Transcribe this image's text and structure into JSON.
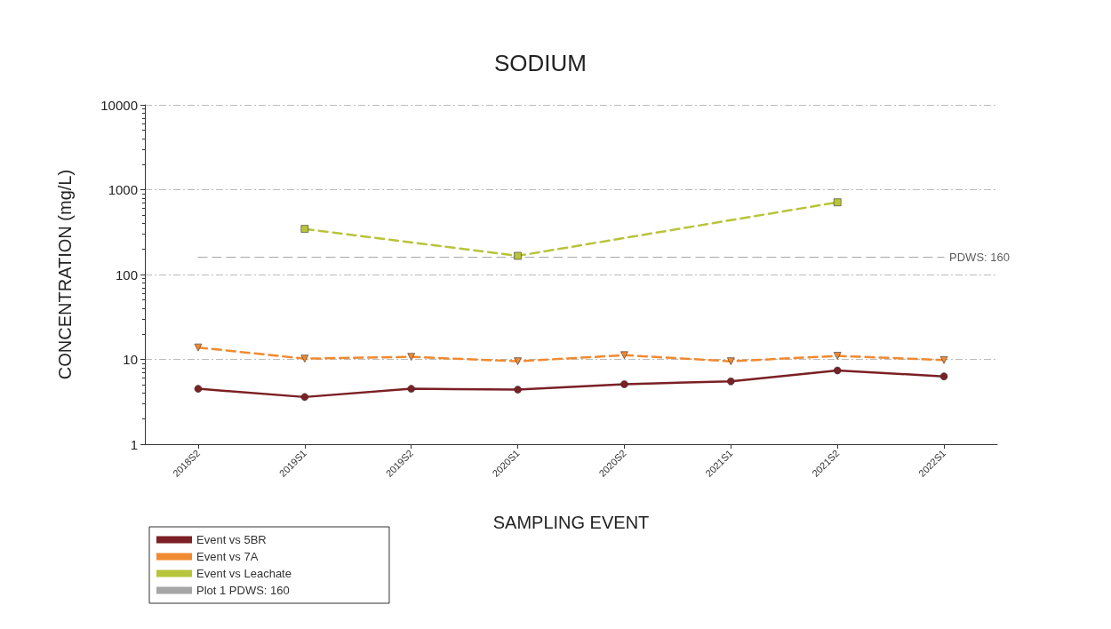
{
  "chart_data": {
    "type": "line",
    "title": "SODIUM",
    "xlabel": "SAMPLING EVENT",
    "ylabel": "CONCENTRATION (mg/L)",
    "categories": [
      "2018S2",
      "2019S1",
      "2019S2",
      "2020S1",
      "2020S2",
      "2021S1",
      "2021S2",
      "2022S1"
    ],
    "series": [
      {
        "name": "Event vs 5BR",
        "color": "#7b2025",
        "marker": "circle",
        "line_style": "solid",
        "values": [
          4.5,
          3.6,
          4.5,
          4.4,
          5.1,
          5.5,
          7.4,
          6.3
        ]
      },
      {
        "name": "Event vs 7A",
        "color": "#f08a30",
        "marker": "triangle",
        "line_style": "dashed",
        "values": [
          13.8,
          10.2,
          10.7,
          9.5,
          11.2,
          9.5,
          11,
          9.8
        ]
      },
      {
        "name": "Event vs Leachate",
        "color": "#b8c43a",
        "marker": "square",
        "line_style": "dashed",
        "values": [
          null,
          345,
          null,
          166,
          null,
          null,
          710,
          null
        ]
      },
      {
        "name": "Plot 1 PDWS: 160",
        "color": "#a6a6a6",
        "marker": "none",
        "line_style": "dashed",
        "values": [
          160,
          160,
          160,
          160,
          160,
          160,
          160,
          160
        ]
      }
    ],
    "annotations": [
      {
        "text": "PDWS: 160",
        "x": "2022S1",
        "y": 160
      }
    ],
    "log": "y",
    "ylim": [
      1,
      10000
    ],
    "yticks": [
      1,
      10,
      100,
      1000,
      10000
    ],
    "grid": "y",
    "legend": "bottom left"
  }
}
